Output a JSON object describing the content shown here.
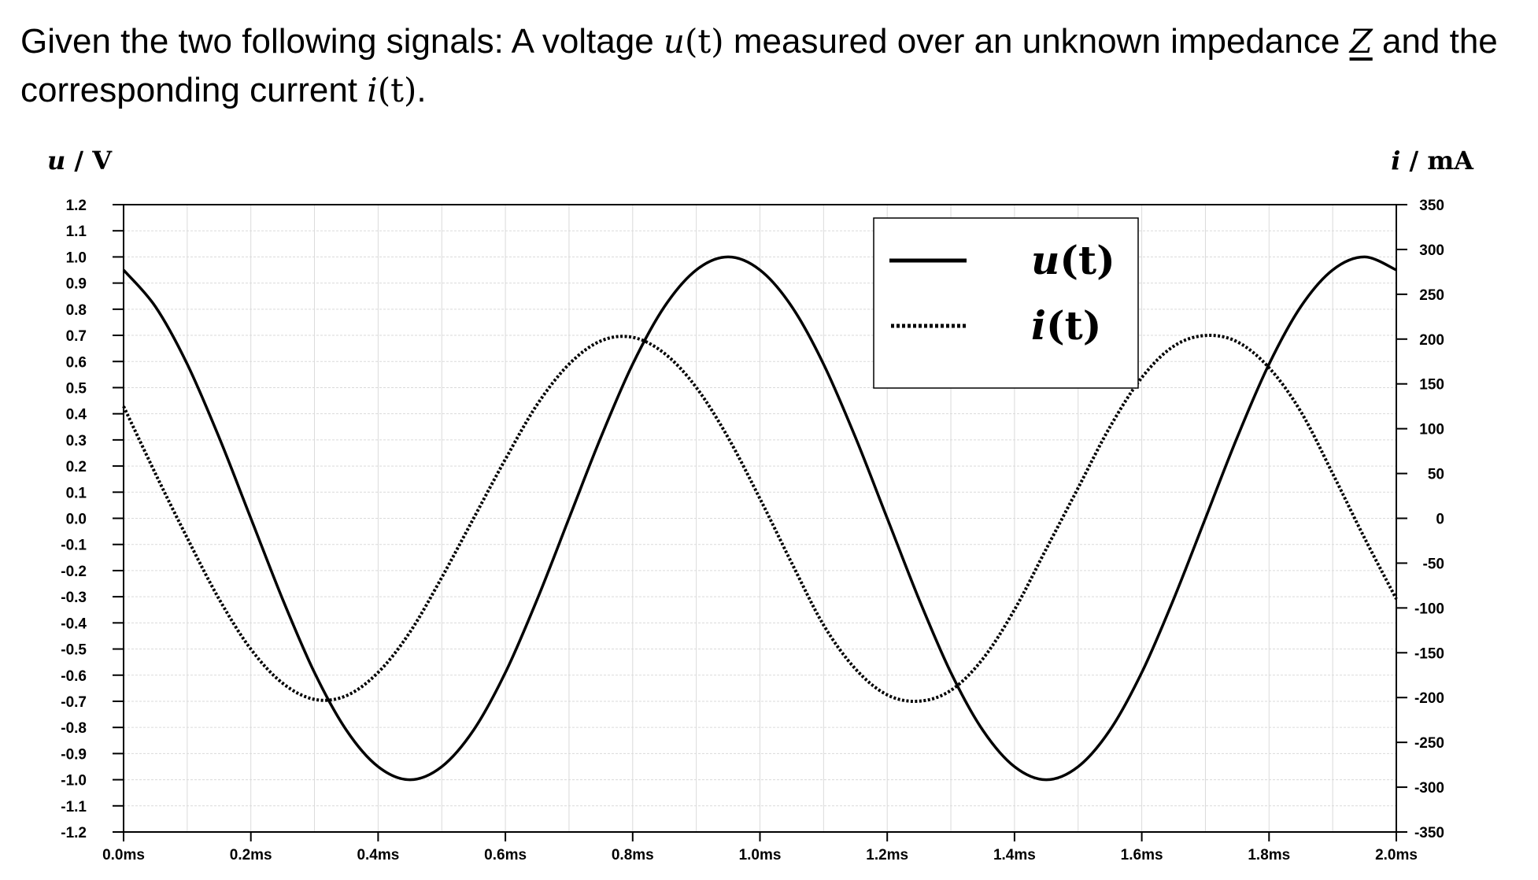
{
  "prompt": {
    "part1": "Given the two following signals: A voltage ",
    "u_symbol": "u",
    "u_arg": "(t)",
    "part2": " measured over an unknown impedance ",
    "z_symbol": "Z",
    "part3": " and the corresponding current ",
    "i_symbol": "i",
    "i_arg": "(t)",
    "part4": "."
  },
  "chart_data": {
    "type": "line",
    "xlabel": "",
    "ylabel_left": {
      "symbol": "u",
      "unit": " / V"
    },
    "ylabel_right": {
      "symbol": "i",
      "unit": " / mA"
    },
    "xlim": [
      0,
      2.0
    ],
    "ylim_left": [
      -1.2,
      1.2
    ],
    "ylim_right": [
      -350,
      350
    ],
    "x_ticks": [
      "0.0ms",
      "0.2ms",
      "0.4ms",
      "0.6ms",
      "0.8ms",
      "1.0ms",
      "1.2ms",
      "1.4ms",
      "1.6ms",
      "1.8ms",
      "2.0ms"
    ],
    "y_ticks_left": [
      "1.2",
      "1.1",
      "1.0",
      "0.9",
      "0.8",
      "0.7",
      "0.6",
      "0.5",
      "0.4",
      "0.3",
      "0.2",
      "0.1",
      "0.0",
      "-0.1",
      "-0.2",
      "-0.3",
      "-0.4",
      "-0.5",
      "-0.6",
      "-0.7",
      "-0.8",
      "-0.9",
      "-1.0",
      "-1.1",
      "-1.2"
    ],
    "y_ticks_right": [
      "350",
      "300",
      "250",
      "200",
      "150",
      "100",
      "50",
      "0",
      "-50",
      "-100",
      "-150",
      "-200",
      "-250",
      "-300",
      "-350"
    ],
    "grid": true,
    "legend_position": "top-center",
    "series": [
      {
        "name": "u(t)",
        "axis": "left",
        "style": "solid",
        "x": [
          0.0,
          0.05,
          0.1,
          0.15,
          0.2,
          0.25,
          0.3,
          0.35,
          0.4,
          0.45,
          0.5,
          0.55,
          0.6,
          0.65,
          0.7,
          0.75,
          0.8,
          0.85,
          0.9,
          0.95,
          1.0,
          1.05,
          1.1,
          1.15,
          1.2,
          1.25,
          1.3,
          1.35,
          1.4,
          1.45,
          1.5,
          1.55,
          1.6,
          1.65,
          1.7,
          1.75,
          1.8,
          1.85,
          1.9,
          1.95,
          2.0
        ],
        "values": [
          0.95,
          0.81,
          0.59,
          0.31,
          0.0,
          -0.31,
          -0.59,
          -0.81,
          -0.95,
          -1.0,
          -0.95,
          -0.81,
          -0.59,
          -0.31,
          0.0,
          0.31,
          0.59,
          0.81,
          0.95,
          1.0,
          0.95,
          0.81,
          0.59,
          0.31,
          0.0,
          -0.31,
          -0.59,
          -0.81,
          -0.95,
          -1.0,
          -0.95,
          -0.81,
          -0.59,
          -0.31,
          0.0,
          0.31,
          0.59,
          0.81,
          0.95,
          1.0,
          0.95
        ]
      },
      {
        "name": "i(t)",
        "axis": "right",
        "style": "dotted",
        "x": [
          0.0,
          0.05,
          0.1,
          0.15,
          0.2,
          0.25,
          0.3,
          0.35,
          0.4,
          0.45,
          0.5,
          0.55,
          0.6,
          0.65,
          0.7,
          0.75,
          0.8,
          0.85,
          0.9,
          0.95,
          1.0,
          1.05,
          1.1,
          1.15,
          1.2,
          1.25,
          1.3,
          1.35,
          1.4,
          1.45,
          1.5,
          1.55,
          1.6,
          1.65,
          1.7,
          1.75,
          1.8,
          1.85,
          1.9,
          1.95,
          2.0
        ],
        "values": [
          125,
          50,
          -22,
          -90,
          -146,
          -184,
          -202,
          -198,
          -172,
          -127,
          -66,
          0,
          66,
          127,
          172,
          198,
          202,
          184,
          146,
          90,
          22,
          -50,
          -119,
          -168,
          -197,
          -204,
          -192,
          -157,
          -102,
          -34,
          34,
          102,
          157,
          192,
          204,
          197,
          168,
          119,
          50,
          -22,
          -90
        ]
      }
    ]
  }
}
